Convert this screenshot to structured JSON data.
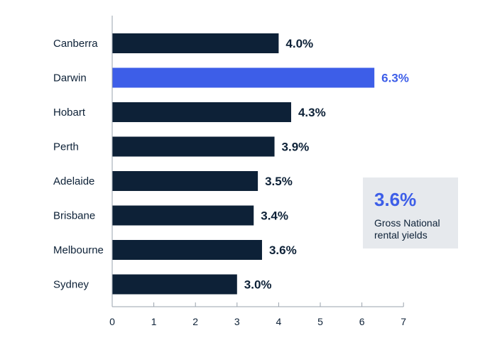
{
  "chart_data": {
    "type": "bar",
    "orientation": "horizontal",
    "categories": [
      "Canberra",
      "Darwin",
      "Hobart",
      "Perth",
      "Adelaide",
      "Brisbane",
      "Melbourne",
      "Sydney"
    ],
    "values": [
      4.0,
      6.3,
      4.3,
      3.9,
      3.5,
      3.4,
      3.6,
      3.0
    ],
    "value_labels": [
      "4.0%",
      "6.3%",
      "4.3%",
      "3.9%",
      "3.5%",
      "3.4%",
      "3.6%",
      "3.0%"
    ],
    "highlight_category": "Darwin",
    "xlim": [
      0,
      7
    ],
    "xticks": [
      "0",
      "1",
      "2",
      "3",
      "4",
      "5",
      "6",
      "7"
    ],
    "title": "",
    "xlabel": "",
    "ylabel": "",
    "bar_color": "#0d2137",
    "highlight_color": "#3d5ee8"
  },
  "callout": {
    "value": "3.6%",
    "label": "Gross National rental yields"
  }
}
